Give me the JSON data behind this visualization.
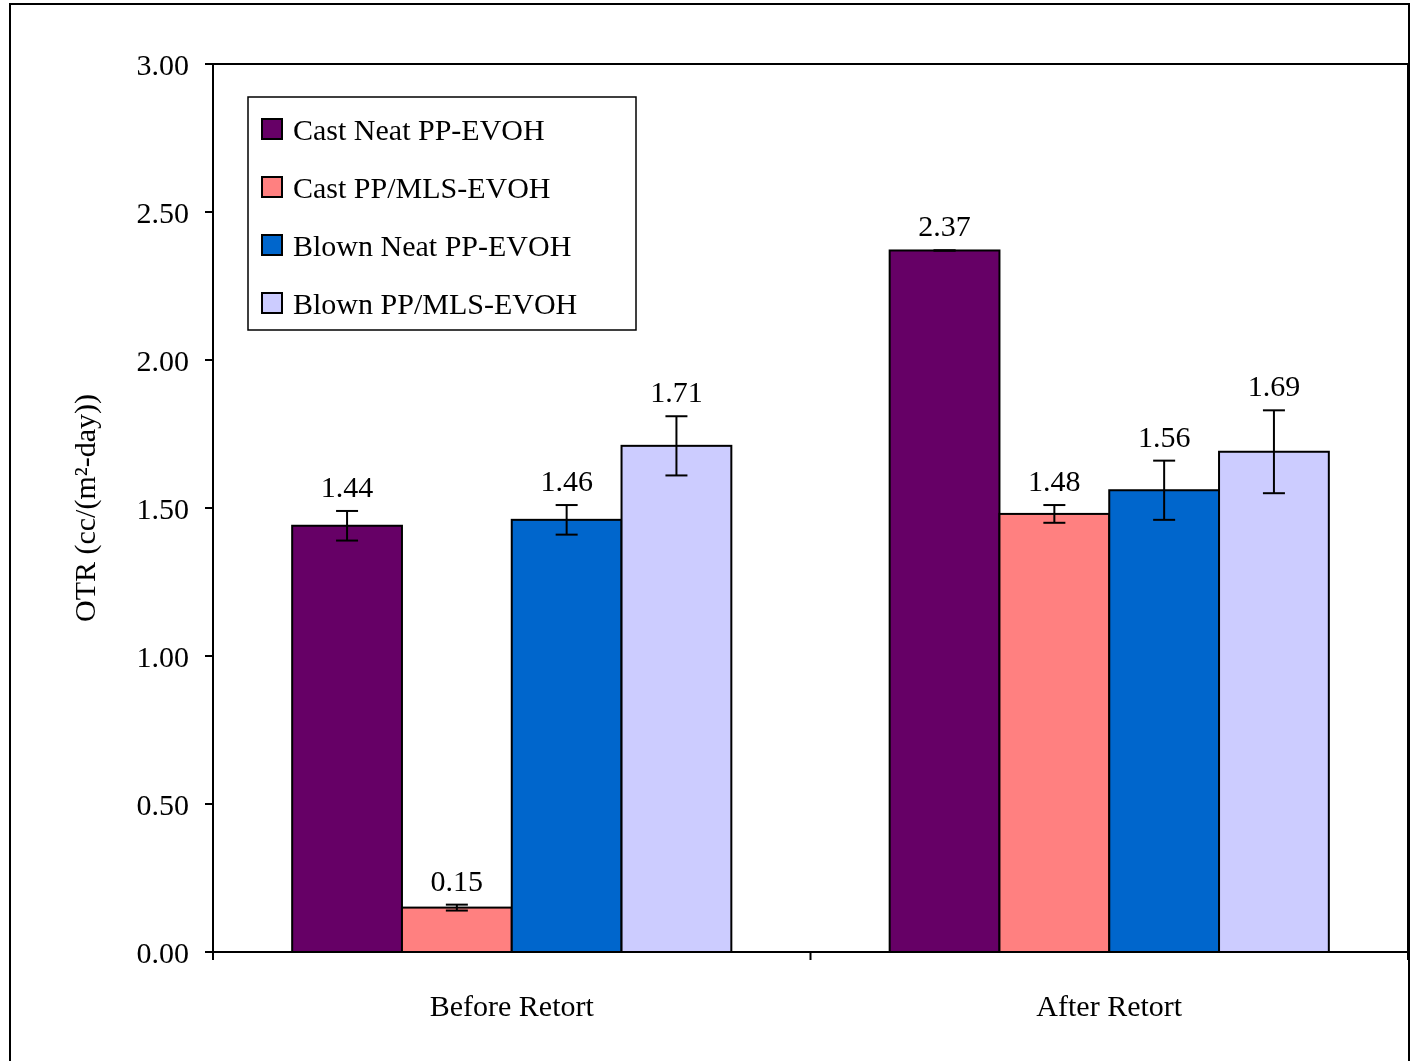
{
  "chart_data": {
    "type": "bar",
    "ylabel": "OTR (cc/(m²-day))",
    "categories": [
      "Before Retort",
      "After Retort"
    ],
    "series": [
      {
        "name": "Cast Neat PP-EVOH",
        "color": "#660066",
        "values": [
          1.44,
          2.37
        ],
        "errors": [
          0.05,
          0
        ]
      },
      {
        "name": "Cast PP/MLS-EVOH",
        "color": "#ff8080",
        "values": [
          0.15,
          1.48
        ],
        "errors": [
          0.01,
          0.03
        ]
      },
      {
        "name": "Blown Neat PP-EVOH",
        "color": "#0066cc",
        "values": [
          1.46,
          1.56
        ],
        "errors": [
          0.05,
          0.1
        ]
      },
      {
        "name": "Blown PP/MLS-EVOH",
        "color": "#ccccff",
        "values": [
          1.71,
          1.69
        ],
        "errors": [
          0.1,
          0.14
        ]
      }
    ],
    "ylim": [
      0,
      3
    ],
    "yticks": [
      {
        "value": 0,
        "label": "0.00"
      },
      {
        "value": 0.5,
        "label": "0.50"
      },
      {
        "value": 1,
        "label": "1.00"
      },
      {
        "value": 1.5,
        "label": "1.50"
      },
      {
        "value": 2,
        "label": "2.00"
      },
      {
        "value": 2.5,
        "label": "2.50"
      },
      {
        "value": 3,
        "label": "3.00"
      }
    ],
    "data_labels": true,
    "legend": "top left",
    "grid": false
  }
}
